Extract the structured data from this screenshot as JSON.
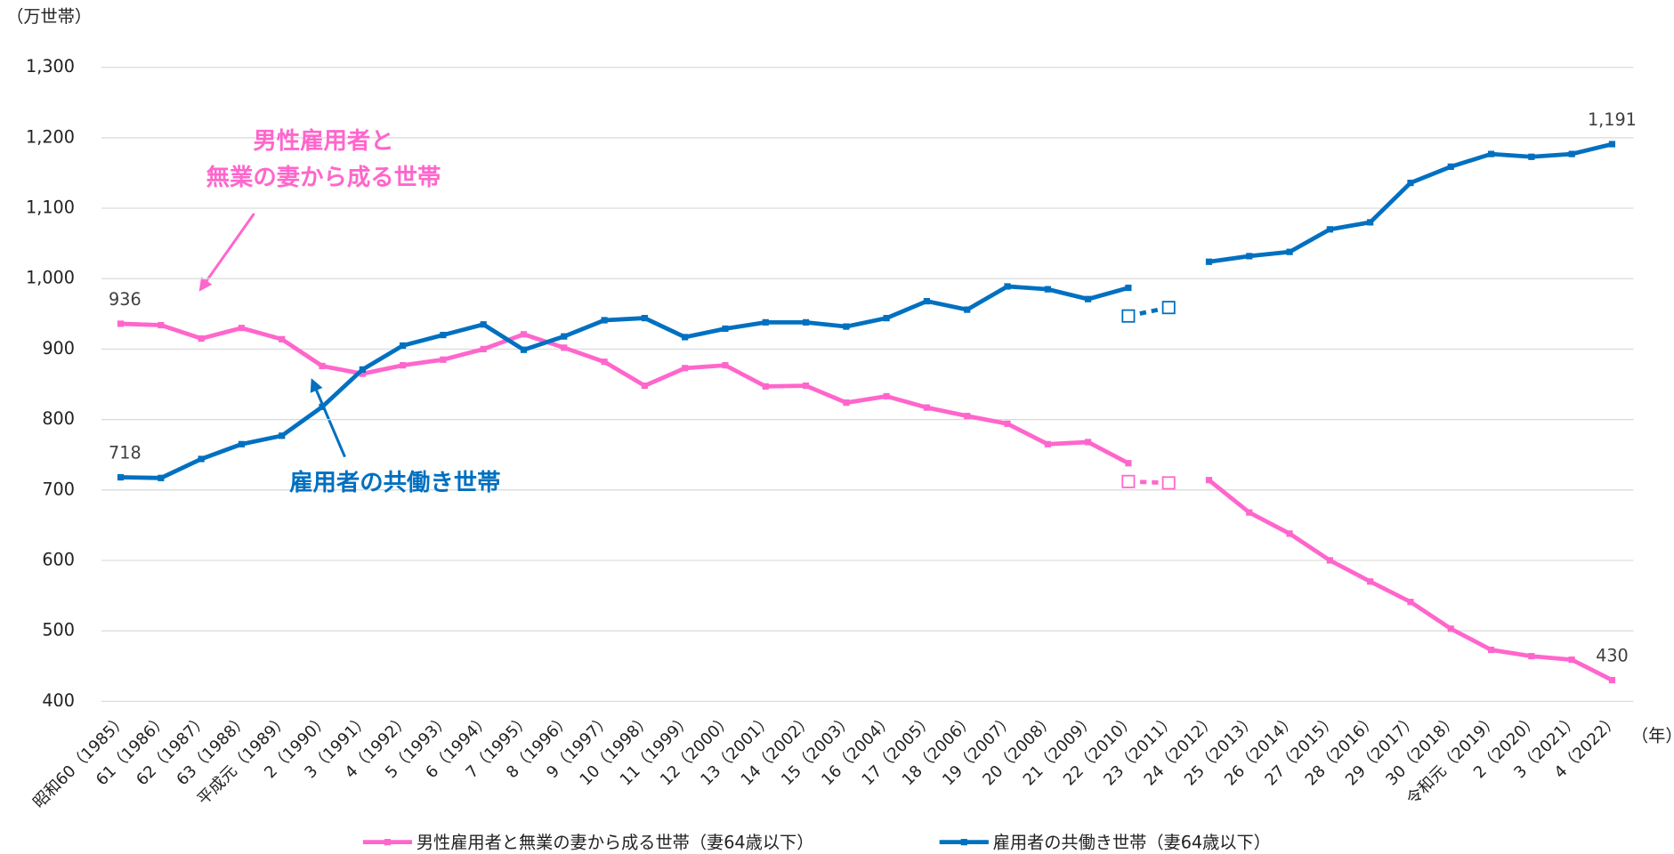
{
  "chart_data": {
    "type": "line",
    "y_label": "（万世帯）",
    "x_label": "（年）",
    "categories": [
      "昭和60（1985）",
      "61（1986）",
      "62（1987）",
      "63（1988）",
      "平成元（1989）",
      "2（1990）",
      "3（1991）",
      "4（1992）",
      "5（1993）",
      "6（1994）",
      "7（1995）",
      "8（1996）",
      "9（1997）",
      "10（1998）",
      "11（1999）",
      "12（2000）",
      "13（2001）",
      "14（2002）",
      "15（2003）",
      "16（2004）",
      "17（2005）",
      "18（2006）",
      "19（2007）",
      "20（2008）",
      "21（2009）",
      "22（2010）",
      "23（2011）",
      "24（2012）",
      "25（2013）",
      "26（2014）",
      "27（2015）",
      "28（2016）",
      "29（2017）",
      "30（2018）",
      "令和元（2019）",
      "2（2020）",
      "3（2021）",
      "4（2022）"
    ],
    "series": [
      {
        "name": "男性雇用者と無業の妻から成る世帯（妻64歳以下）",
        "color": "#ff66cc",
        "values": [
          936,
          934,
          915,
          930,
          914,
          876,
          865,
          877,
          885,
          900,
          921,
          902,
          882,
          848,
          873,
          877,
          847,
          848,
          824,
          833,
          817,
          805,
          794,
          765,
          768,
          738,
          null,
          714,
          668,
          638,
          600,
          570,
          541,
          503,
          473,
          464,
          459,
          430
        ],
        "value_labels": [
          "936",
          null,
          null,
          null,
          null,
          null,
          null,
          null,
          null,
          null,
          null,
          null,
          null,
          null,
          null,
          null,
          null,
          null,
          null,
          null,
          null,
          null,
          null,
          null,
          null,
          null,
          null,
          null,
          null,
          null,
          null,
          null,
          null,
          null,
          null,
          null,
          null,
          "430"
        ]
      },
      {
        "name": "雇用者の共働き世帯（妻64歳以下）",
        "color": "#0070c0",
        "values": [
          718,
          717,
          744,
          765,
          777,
          818,
          871,
          905,
          920,
          935,
          899,
          918,
          941,
          944,
          917,
          929,
          938,
          938,
          932,
          944,
          968,
          956,
          989,
          985,
          971,
          987,
          null,
          1024,
          1032,
          1038,
          1070,
          1080,
          1136,
          1159,
          1177,
          1173,
          1177,
          1191
        ],
        "value_labels": [
          "718",
          null,
          null,
          null,
          null,
          null,
          null,
          null,
          null,
          null,
          null,
          null,
          null,
          null,
          null,
          null,
          null,
          null,
          null,
          null,
          null,
          null,
          null,
          null,
          null,
          null,
          null,
          null,
          null,
          null,
          null,
          null,
          null,
          null,
          null,
          null,
          null,
          "1,191"
        ]
      }
    ],
    "supplementary": [
      {
        "color": "#ff66cc",
        "values": [
          null,
          null,
          null,
          null,
          null,
          null,
          null,
          null,
          null,
          null,
          null,
          null,
          null,
          null,
          null,
          null,
          null,
          null,
          null,
          null,
          null,
          null,
          null,
          null,
          null,
          712,
          710,
          null,
          null,
          null,
          null,
          null,
          null,
          null,
          null,
          null,
          null,
          null
        ]
      },
      {
        "color": "#0070c0",
        "values": [
          null,
          null,
          null,
          null,
          null,
          null,
          null,
          null,
          null,
          null,
          null,
          null,
          null,
          null,
          null,
          null,
          null,
          null,
          null,
          null,
          null,
          null,
          null,
          null,
          null,
          947,
          959,
          null,
          null,
          null,
          null,
          null,
          null,
          null,
          null,
          null,
          null,
          null
        ]
      }
    ],
    "annotations": [
      {
        "text": [
          "男性雇用者と",
          "無業の妻から成る世帯"
        ],
        "color": "#ff66cc"
      },
      {
        "text": [
          "雇用者の共働き世帯"
        ],
        "color": "#0070c0"
      }
    ],
    "ylim": [
      400,
      1300
    ],
    "yticks": [
      400,
      500,
      600,
      700,
      800,
      900,
      {
        "value": 1000,
        "label": "1,000"
      },
      {
        "value": 1100,
        "label": "1,100"
      },
      {
        "value": 1200,
        "label": "1,200"
      },
      {
        "value": 1300,
        "label": "1,300"
      }
    ],
    "grid": true
  }
}
